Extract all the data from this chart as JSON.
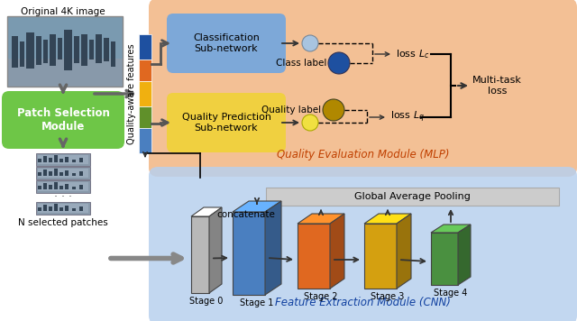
{
  "bg_color": "#ffffff",
  "orange_module_color": "#f2b98a",
  "blue_module_color": "#b8d0ee",
  "green_box_color": "#6ec647",
  "class_subnet_color": "#7da8d8",
  "quality_subnet_color": "#f0d040",
  "stage0_color": "#b8b8b8",
  "stage1_color": "#4a7fc0",
  "stage2_color": "#e06820",
  "stage3_color": "#d4a010",
  "stage4_color": "#4a9040",
  "gap_color": "#cccccc",
  "bar_colors": [
    "#1e50a0",
    "#e06820",
    "#f0b010",
    "#60902a",
    "#4a7fc0"
  ],
  "labels": {
    "orig_image": "Original 4K image",
    "patch_module": "Patch Selection\nModule",
    "n_patches": "N selected patches",
    "quality_features": "Quality-aware features",
    "class_subnet": "Classification\nSub-network",
    "quality_subnet": "Quality Prediction\nSub-network",
    "class_label": "Class label",
    "quality_label": "Quality label",
    "loss_c": "loss $L_c$",
    "loss_q": "loss $L_q$",
    "multi_task": "Multi-task\nloss",
    "quality_eval": "Quality Evaluation Module (MLP)",
    "concatenate": "concatenate",
    "gap": "Global Average Pooling",
    "stage0": "Stage 0",
    "stage1": "Stage 1",
    "stage2": "Stage 2",
    "stage3": "Stage 3",
    "stage4": "Stage 4",
    "feature_extract": "Feature Extraction Module (CNN)"
  }
}
